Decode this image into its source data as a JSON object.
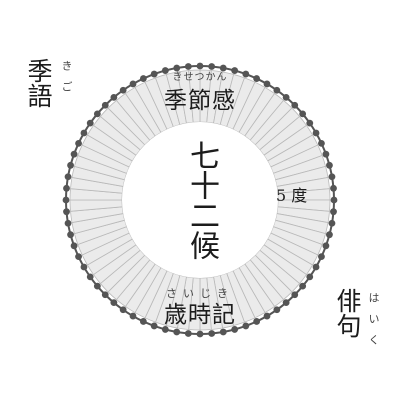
{
  "dial": {
    "segment_count": 72,
    "segment_fill": "#ebebeb",
    "segment_stroke": "#b9b9b9",
    "bead_fill": "#555555",
    "background": "#ffffff"
  },
  "corner_top_left": {
    "kanji": "季語",
    "ruby": "きご"
  },
  "corner_bottom_right": {
    "kanji": "俳句",
    "ruby": "はいく"
  },
  "top_label": {
    "kanji": "季節感",
    "ruby": "きせつかん"
  },
  "center": {
    "title": "七十二候"
  },
  "right_label": {
    "text": "5 度"
  },
  "bottom_label": {
    "kanji": "歳時記",
    "ruby": "さいじき"
  }
}
